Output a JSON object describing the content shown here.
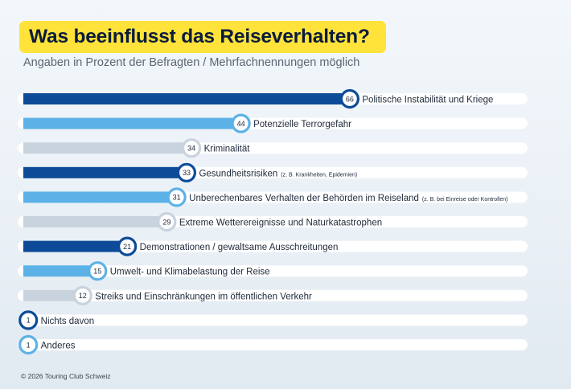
{
  "title": "Was beeinflusst das Reiseverhalten?",
  "subtitle": "Angaben in Prozent der Befragten / Mehrfachnennungen möglich",
  "footer": "© 2026 Touring Club Schweiz",
  "colors": {
    "dark_blue": "#0d4b99",
    "light_blue": "#5cb2e6",
    "gray": "#c8d3dd",
    "track": "#ffffff",
    "label_text": "#1e2a3a"
  },
  "chart_data": {
    "type": "bar",
    "orientation": "horizontal",
    "title": "Was beeinflusst das Reiseverhalten?",
    "subtitle": "Angaben in Prozent der Befragten / Mehrfachnennungen möglich",
    "xlim": [
      0,
      100
    ],
    "grid": false,
    "bars": [
      {
        "label": "Politische Instabilität und Kriege",
        "note": "",
        "value": 66,
        "color": "dark"
      },
      {
        "label": "Potenzielle Terrorgefahr",
        "note": "",
        "value": 44,
        "color": "light"
      },
      {
        "label": "Kriminalität",
        "note": "",
        "value": 34,
        "color": "gray"
      },
      {
        "label": "Gesundheitsrisiken",
        "note": "(z. B. Krankheiten, Epidemien)",
        "value": 33,
        "color": "dark"
      },
      {
        "label": "Unberechenbares Verhalten der Behörden im Reiseland",
        "note": "(z. B. bei Einreise oder Kontrollen)",
        "value": 31,
        "color": "light"
      },
      {
        "label": "Extreme Wetterereignisse und Naturkatastrophen",
        "note": "",
        "value": 29,
        "color": "gray"
      },
      {
        "label": "Demonstrationen / gewaltsame Ausschreitungen",
        "note": "",
        "value": 21,
        "color": "dark"
      },
      {
        "label": "Umwelt- und Klimabelastung der Reise",
        "note": "",
        "value": 15,
        "color": "light"
      },
      {
        "label": "Streiks und Einschränkungen im öffentlichen Verkehr",
        "note": "",
        "value": 12,
        "color": "gray"
      },
      {
        "label": "Nichts davon",
        "note": "",
        "value": 1,
        "color": "dark"
      },
      {
        "label": "Anderes",
        "note": "",
        "value": 1,
        "color": "light"
      }
    ]
  }
}
